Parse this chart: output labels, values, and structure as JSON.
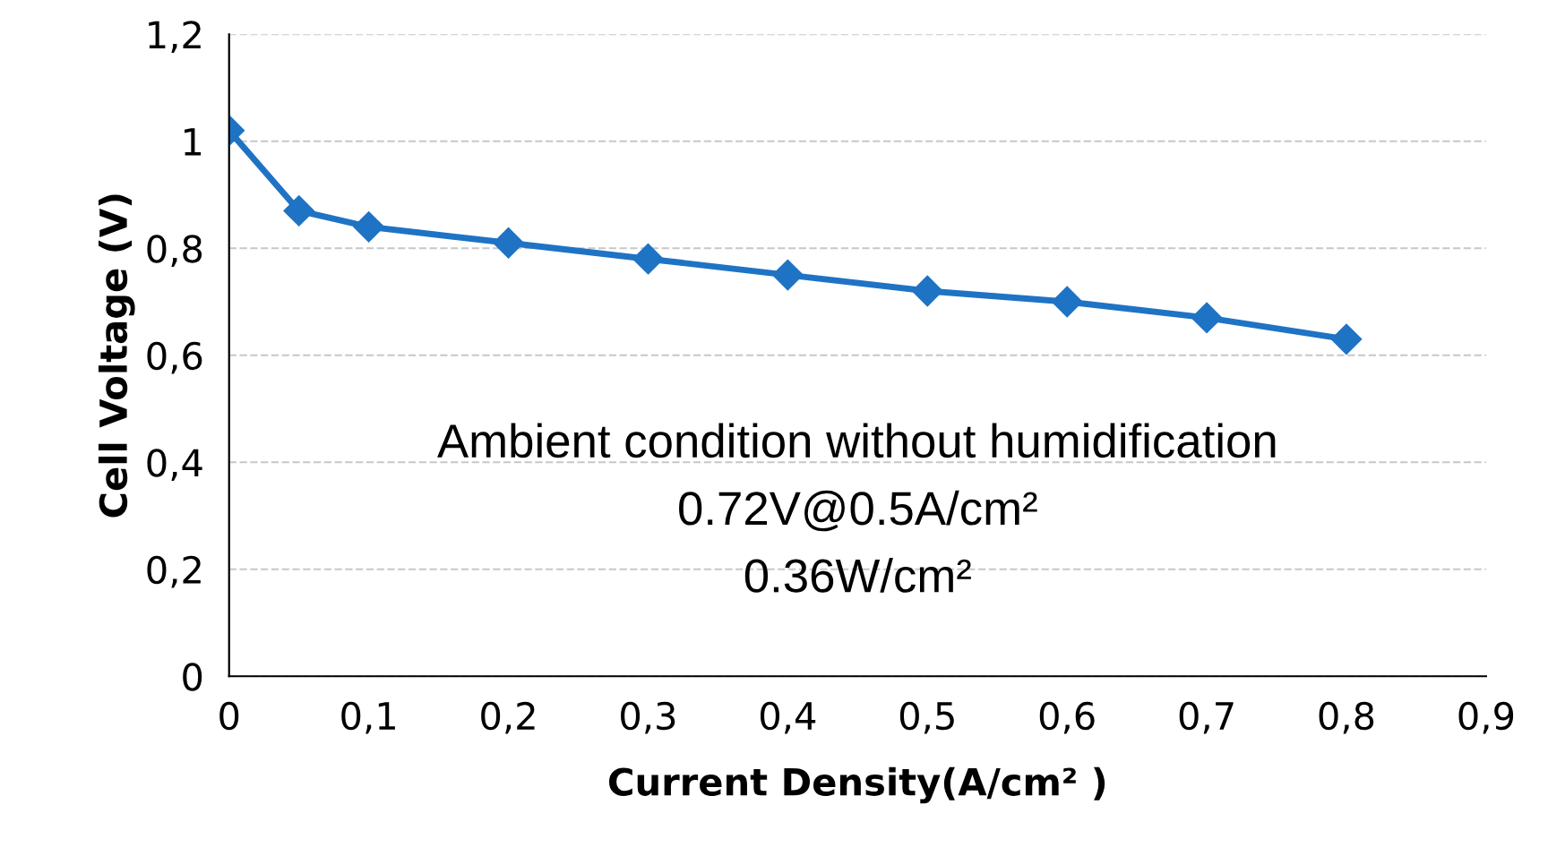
{
  "chart_data": {
    "type": "line",
    "xlabel": "Current Density(A/cm² )",
    "ylabel": "Cell Voltage (V)",
    "x": [
      0,
      0.05,
      0.1,
      0.2,
      0.3,
      0.4,
      0.5,
      0.6,
      0.7,
      0.8
    ],
    "series": [
      {
        "color": "#1f73c4",
        "values": [
          1.02,
          0.87,
          0.84,
          0.81,
          0.78,
          0.75,
          0.72,
          0.7,
          0.67,
          0.63
        ]
      }
    ],
    "xlim": [
      0,
      0.9
    ],
    "ylim": [
      0,
      1.2
    ],
    "xticks": [
      0,
      {
        "value": 0.1,
        "label": "0,1"
      },
      {
        "value": 0.2,
        "label": "0,2"
      },
      {
        "value": 0.3,
        "label": "0,3"
      },
      {
        "value": 0.4,
        "label": "0,4"
      },
      {
        "value": 0.5,
        "label": "0,5"
      },
      {
        "value": 0.6,
        "label": "0,6"
      },
      {
        "value": 0.7,
        "label": "0,7"
      },
      {
        "value": 0.8,
        "label": "0,8"
      },
      {
        "value": 0.9,
        "label": "0,9"
      }
    ],
    "yticks": [
      0,
      {
        "value": 0.2,
        "label": "0,2"
      },
      {
        "value": 0.4,
        "label": "0,4"
      },
      {
        "value": 0.6,
        "label": "0,6"
      },
      {
        "value": 0.8,
        "label": "0,8"
      },
      1,
      {
        "value": 1.2,
        "label": "1,2"
      }
    ],
    "grid": "y",
    "marker": "diamond",
    "line_style": "solid",
    "annotations": [
      "Ambient condition without humidification",
      "0.72V@0.5A/cm²",
      "0.36W/cm²"
    ]
  }
}
